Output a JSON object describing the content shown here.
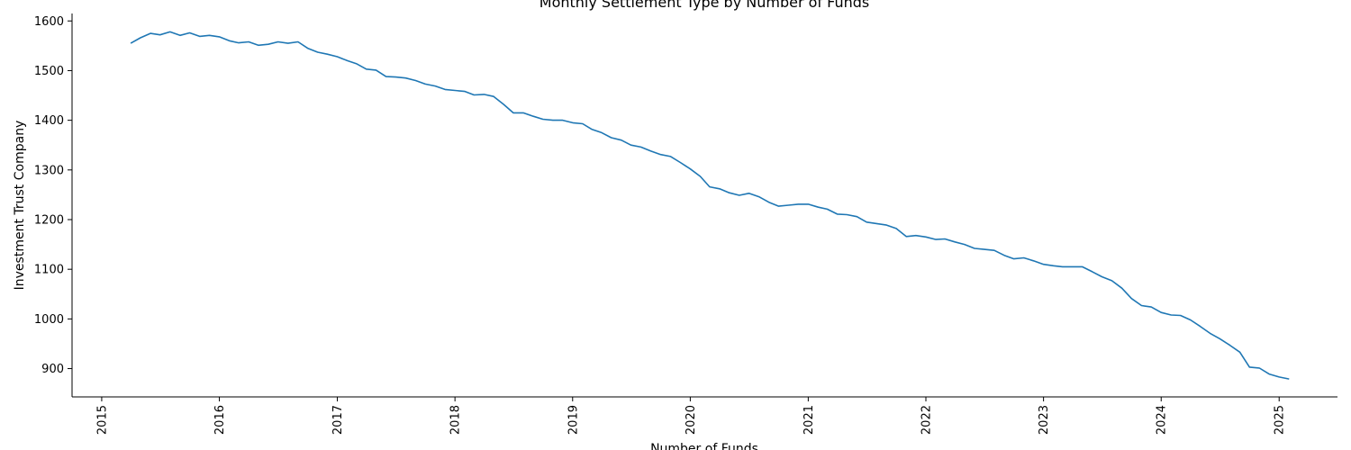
{
  "chart_data": {
    "type": "line",
    "title": "Monthly Settlement Type by Number of Funds",
    "xlabel": "Number of Funds",
    "ylabel": "Investment Trust Company",
    "xlim": [
      "2014-10-01",
      "2025-07-01"
    ],
    "ylim": [
      843,
      1615
    ],
    "x_ticks": [
      "2015",
      "2016",
      "2017",
      "2018",
      "2019",
      "2020",
      "2021",
      "2022",
      "2023",
      "2024",
      "2025"
    ],
    "y_ticks": [
      900,
      1000,
      1100,
      1200,
      1300,
      1400,
      1500,
      1600
    ],
    "grid": false,
    "line_color": "#1f77b4",
    "series": [
      {
        "x": [
          "2015-04",
          "2015-05",
          "2015-06",
          "2015-07",
          "2015-08",
          "2015-09",
          "2015-10",
          "2015-11",
          "2015-12",
          "2016-01",
          "2016-02",
          "2016-03",
          "2016-04",
          "2016-05",
          "2016-06",
          "2016-07",
          "2016-08",
          "2016-09",
          "2016-10",
          "2016-11",
          "2016-12",
          "2017-01",
          "2017-02",
          "2017-03",
          "2017-04",
          "2017-05",
          "2017-06",
          "2017-07",
          "2017-08",
          "2017-09",
          "2017-10",
          "2017-11",
          "2017-12",
          "2018-01",
          "2018-02",
          "2018-03",
          "2018-04",
          "2018-05",
          "2018-06",
          "2018-07",
          "2018-08",
          "2018-09",
          "2018-10",
          "2018-11",
          "2018-12",
          "2019-01",
          "2019-02",
          "2019-03",
          "2019-04",
          "2019-05",
          "2019-06",
          "2019-07",
          "2019-08",
          "2019-09",
          "2019-10",
          "2019-11",
          "2019-12",
          "2020-01",
          "2020-02",
          "2020-03",
          "2020-04",
          "2020-05",
          "2020-06",
          "2020-07",
          "2020-08",
          "2020-09",
          "2020-10",
          "2020-11",
          "2020-12",
          "2021-01",
          "2021-02",
          "2021-03",
          "2021-04",
          "2021-05",
          "2021-06",
          "2021-07",
          "2021-08",
          "2021-09",
          "2021-10",
          "2021-11",
          "2021-12",
          "2022-01",
          "2022-02",
          "2022-03",
          "2022-04",
          "2022-05",
          "2022-06",
          "2022-07",
          "2022-08",
          "2022-09",
          "2022-10",
          "2022-11",
          "2022-12",
          "2023-01",
          "2023-02",
          "2023-03",
          "2023-04",
          "2023-05",
          "2023-06",
          "2023-07",
          "2023-08",
          "2023-09",
          "2023-10",
          "2023-11",
          "2023-12",
          "2024-01",
          "2024-02",
          "2024-03",
          "2024-04",
          "2024-05",
          "2024-06",
          "2024-07",
          "2024-08",
          "2024-09",
          "2024-10",
          "2024-11",
          "2024-12",
          "2025-01",
          "2025-02"
        ],
        "values": [
          1555,
          1566,
          1575,
          1572,
          1578,
          1571,
          1576,
          1569,
          1571,
          1568,
          1560,
          1556,
          1558,
          1551,
          1553,
          1558,
          1555,
          1558,
          1545,
          1537,
          1533,
          1528,
          1520,
          1514,
          1503,
          1501,
          1488,
          1487,
          1485,
          1480,
          1473,
          1469,
          1462,
          1460,
          1458,
          1451,
          1452,
          1448,
          1432,
          1415,
          1415,
          1408,
          1402,
          1400,
          1400,
          1395,
          1393,
          1382,
          1375,
          1365,
          1360,
          1350,
          1346,
          1338,
          1331,
          1327,
          1315,
          1302,
          1287,
          1266,
          1262,
          1254,
          1249,
          1253,
          1246,
          1235,
          1227,
          1229,
          1231,
          1231,
          1225,
          1221,
          1211,
          1210,
          1206,
          1195,
          1192,
          1189,
          1182,
          1166,
          1168,
          1165,
          1160,
          1161,
          1155,
          1150,
          1142,
          1140,
          1138,
          1128,
          1121,
          1123,
          1117,
          1110,
          1107,
          1105,
          1105,
          1105,
          1095,
          1085,
          1077,
          1062,
          1041,
          1027,
          1024,
          1013,
          1008,
          1007,
          998,
          985,
          971,
          960,
          947,
          933,
          903,
          901,
          889,
          883,
          879
        ]
      }
    ]
  }
}
